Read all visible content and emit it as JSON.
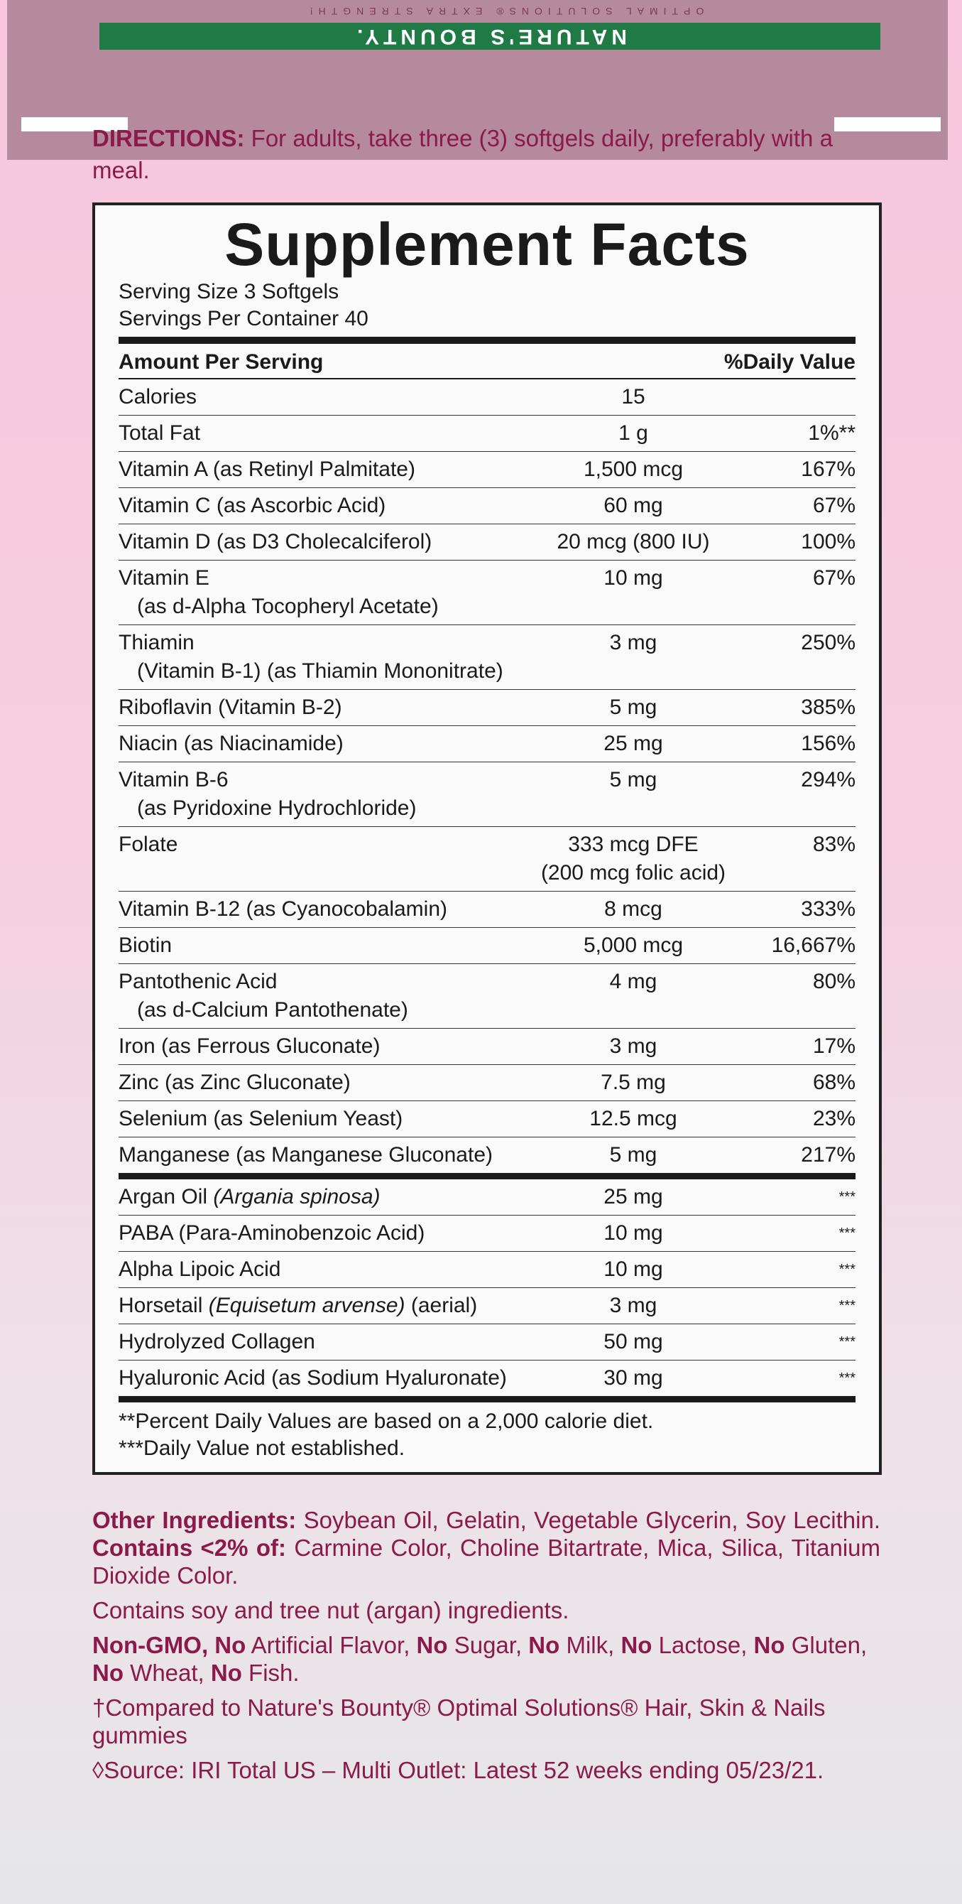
{
  "colors": {
    "accent": "#8b1a4a",
    "box_bg": "#fafafa",
    "brand_green": "#1f7a45"
  },
  "lid": {
    "brand": "NATURE'S BOUNTY.",
    "sub": "OPTIMAL SOLUTIONS® EXTRA STRENGTH!"
  },
  "directions": {
    "label": "DIRECTIONS:",
    "text": " For adults, take three (3) softgels daily, preferably with a meal."
  },
  "facts": {
    "title": "Supplement Facts",
    "serving_size": "Serving Size 3 Softgels",
    "servings_per_container": "Servings Per Container 40",
    "header_amount": "Amount Per Serving",
    "header_dv": "%Daily Value",
    "rows": [
      {
        "name": "Calories",
        "amount": "15",
        "dv": ""
      },
      {
        "name": "Total Fat",
        "amount": "1 g",
        "dv": "1%**"
      },
      {
        "name": "Vitamin A (as Retinyl Palmitate)",
        "amount": "1,500 mcg",
        "dv": "167%"
      },
      {
        "name": "Vitamin C (as Ascorbic Acid)",
        "amount": "60 mg",
        "dv": "67%"
      },
      {
        "name": "Vitamin D (as D3 Cholecalciferol)",
        "amount": "20 mcg (800 IU)",
        "dv": "100%"
      },
      {
        "name": "Vitamin E",
        "sub": "(as d-Alpha Tocopheryl Acetate)",
        "amount": "10 mg",
        "dv": "67%"
      },
      {
        "name": "Thiamin",
        "sub": "(Vitamin B-1) (as Thiamin Mononitrate)",
        "amount": "3 mg",
        "dv": "250%"
      },
      {
        "name": "Riboflavin (Vitamin B-2)",
        "amount": "5 mg",
        "dv": "385%"
      },
      {
        "name": "Niacin (as Niacinamide)",
        "amount": "25 mg",
        "dv": "156%"
      },
      {
        "name": "Vitamin B-6",
        "sub": "(as Pyridoxine Hydrochloride)",
        "amount": "5 mg",
        "dv": "294%"
      },
      {
        "name": "Folate",
        "amount": "333 mcg DFE",
        "amount2": "(200 mcg folic acid)",
        "dv": "83%"
      },
      {
        "name": "Vitamin B-12 (as Cyanocobalamin)",
        "amount": "8 mcg",
        "dv": "333%"
      },
      {
        "name": "Biotin",
        "amount": "5,000 mcg",
        "dv": "16,667%"
      },
      {
        "name": "Pantothenic Acid",
        "sub": "(as d-Calcium Pantothenate)",
        "amount": "4 mg",
        "dv": "80%"
      },
      {
        "name": "Iron (as Ferrous Gluconate)",
        "amount": "3 mg",
        "dv": "17%"
      },
      {
        "name": "Zinc (as Zinc Gluconate)",
        "amount": "7.5 mg",
        "dv": "68%"
      },
      {
        "name": "Selenium (as Selenium Yeast)",
        "amount": "12.5 mcg",
        "dv": "23%"
      },
      {
        "name": "Manganese (as Manganese Gluconate)",
        "amount": "5 mg",
        "dv": "217%",
        "thick": true
      },
      {
        "name": "Argan Oil ",
        "italic": "(Argania spinosa)",
        "amount": "25 mg",
        "dv": "***"
      },
      {
        "name": "PABA (Para-Aminobenzoic Acid)",
        "amount": "10 mg",
        "dv": "***"
      },
      {
        "name": "Alpha Lipoic Acid",
        "amount": "10 mg",
        "dv": "***"
      },
      {
        "name": "Horsetail ",
        "italic": "(Equisetum arvense)",
        "suffix": " (aerial)",
        "amount": "3 mg",
        "dv": "***"
      },
      {
        "name": "Hydrolyzed Collagen",
        "amount": "50 mg",
        "dv": "***"
      },
      {
        "name": "Hyaluronic Acid (as Sodium Hyaluronate)",
        "amount": "30 mg",
        "dv": "***",
        "thick": true
      }
    ],
    "footnote1": "**Percent Daily Values are based on a 2,000 calorie diet.",
    "footnote2": "***Daily Value not established."
  },
  "other": {
    "label": "Other Ingredients:",
    "text1": " Soybean Oil, Gelatin, Vegetable Glycerin, Soy Lecithin. ",
    "contains_label": "Contains <2% of:",
    "text2": " Carmine Color, Choline Bitartrate, Mica, Silica, Titanium Dioxide Color.",
    "allergen": "Contains soy and tree nut (argan) ingredients.",
    "claims": [
      [
        "Non-GMO, No",
        true
      ],
      [
        " Artificial Flavor, ",
        false
      ],
      [
        "No",
        true
      ],
      [
        " Sugar, ",
        false
      ],
      [
        "No",
        true
      ],
      [
        " Milk, ",
        false
      ],
      [
        "No",
        true
      ],
      [
        " Lactose, ",
        false
      ],
      [
        "No",
        true
      ],
      [
        " Gluten, ",
        false
      ],
      [
        "No",
        true
      ],
      [
        " Wheat, ",
        false
      ],
      [
        "No",
        true
      ],
      [
        " Fish.",
        false
      ]
    ],
    "compared": "†Compared to Nature's Bounty® Optimal Solutions® Hair, Skin & Nails gummies",
    "source": "◊Source: IRI Total US – Multi Outlet: Latest 52 weeks ending 05/23/21."
  }
}
